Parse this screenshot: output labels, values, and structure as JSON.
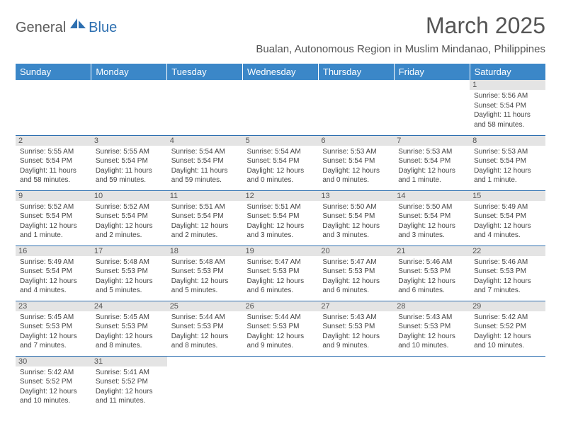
{
  "brand": {
    "part1": "General",
    "part2": "Blue"
  },
  "title": "March 2025",
  "location": "Bualan, Autonomous Region in Muslim Mindanao, Philippines",
  "header_bg": "#3b87c8",
  "rule_color": "#2d6fb0",
  "day_bg": "#e4e4e4",
  "days": [
    "Sunday",
    "Monday",
    "Tuesday",
    "Wednesday",
    "Thursday",
    "Friday",
    "Saturday"
  ],
  "weeks": [
    [
      null,
      null,
      null,
      null,
      null,
      null,
      {
        "n": "1",
        "sr": "5:56 AM",
        "ss": "5:54 PM",
        "dl": "11 hours and 58 minutes."
      }
    ],
    [
      {
        "n": "2",
        "sr": "5:55 AM",
        "ss": "5:54 PM",
        "dl": "11 hours and 58 minutes."
      },
      {
        "n": "3",
        "sr": "5:55 AM",
        "ss": "5:54 PM",
        "dl": "11 hours and 59 minutes."
      },
      {
        "n": "4",
        "sr": "5:54 AM",
        "ss": "5:54 PM",
        "dl": "11 hours and 59 minutes."
      },
      {
        "n": "5",
        "sr": "5:54 AM",
        "ss": "5:54 PM",
        "dl": "12 hours and 0 minutes."
      },
      {
        "n": "6",
        "sr": "5:53 AM",
        "ss": "5:54 PM",
        "dl": "12 hours and 0 minutes."
      },
      {
        "n": "7",
        "sr": "5:53 AM",
        "ss": "5:54 PM",
        "dl": "12 hours and 1 minute."
      },
      {
        "n": "8",
        "sr": "5:53 AM",
        "ss": "5:54 PM",
        "dl": "12 hours and 1 minute."
      }
    ],
    [
      {
        "n": "9",
        "sr": "5:52 AM",
        "ss": "5:54 PM",
        "dl": "12 hours and 1 minute."
      },
      {
        "n": "10",
        "sr": "5:52 AM",
        "ss": "5:54 PM",
        "dl": "12 hours and 2 minutes."
      },
      {
        "n": "11",
        "sr": "5:51 AM",
        "ss": "5:54 PM",
        "dl": "12 hours and 2 minutes."
      },
      {
        "n": "12",
        "sr": "5:51 AM",
        "ss": "5:54 PM",
        "dl": "12 hours and 3 minutes."
      },
      {
        "n": "13",
        "sr": "5:50 AM",
        "ss": "5:54 PM",
        "dl": "12 hours and 3 minutes."
      },
      {
        "n": "14",
        "sr": "5:50 AM",
        "ss": "5:54 PM",
        "dl": "12 hours and 3 minutes."
      },
      {
        "n": "15",
        "sr": "5:49 AM",
        "ss": "5:54 PM",
        "dl": "12 hours and 4 minutes."
      }
    ],
    [
      {
        "n": "16",
        "sr": "5:49 AM",
        "ss": "5:54 PM",
        "dl": "12 hours and 4 minutes."
      },
      {
        "n": "17",
        "sr": "5:48 AM",
        "ss": "5:53 PM",
        "dl": "12 hours and 5 minutes."
      },
      {
        "n": "18",
        "sr": "5:48 AM",
        "ss": "5:53 PM",
        "dl": "12 hours and 5 minutes."
      },
      {
        "n": "19",
        "sr": "5:47 AM",
        "ss": "5:53 PM",
        "dl": "12 hours and 6 minutes."
      },
      {
        "n": "20",
        "sr": "5:47 AM",
        "ss": "5:53 PM",
        "dl": "12 hours and 6 minutes."
      },
      {
        "n": "21",
        "sr": "5:46 AM",
        "ss": "5:53 PM",
        "dl": "12 hours and 6 minutes."
      },
      {
        "n": "22",
        "sr": "5:46 AM",
        "ss": "5:53 PM",
        "dl": "12 hours and 7 minutes."
      }
    ],
    [
      {
        "n": "23",
        "sr": "5:45 AM",
        "ss": "5:53 PM",
        "dl": "12 hours and 7 minutes."
      },
      {
        "n": "24",
        "sr": "5:45 AM",
        "ss": "5:53 PM",
        "dl": "12 hours and 8 minutes."
      },
      {
        "n": "25",
        "sr": "5:44 AM",
        "ss": "5:53 PM",
        "dl": "12 hours and 8 minutes."
      },
      {
        "n": "26",
        "sr": "5:44 AM",
        "ss": "5:53 PM",
        "dl": "12 hours and 9 minutes."
      },
      {
        "n": "27",
        "sr": "5:43 AM",
        "ss": "5:53 PM",
        "dl": "12 hours and 9 minutes."
      },
      {
        "n": "28",
        "sr": "5:43 AM",
        "ss": "5:53 PM",
        "dl": "12 hours and 10 minutes."
      },
      {
        "n": "29",
        "sr": "5:42 AM",
        "ss": "5:52 PM",
        "dl": "12 hours and 10 minutes."
      }
    ],
    [
      {
        "n": "30",
        "sr": "5:42 AM",
        "ss": "5:52 PM",
        "dl": "12 hours and 10 minutes."
      },
      {
        "n": "31",
        "sr": "5:41 AM",
        "ss": "5:52 PM",
        "dl": "12 hours and 11 minutes."
      },
      null,
      null,
      null,
      null,
      null
    ]
  ]
}
